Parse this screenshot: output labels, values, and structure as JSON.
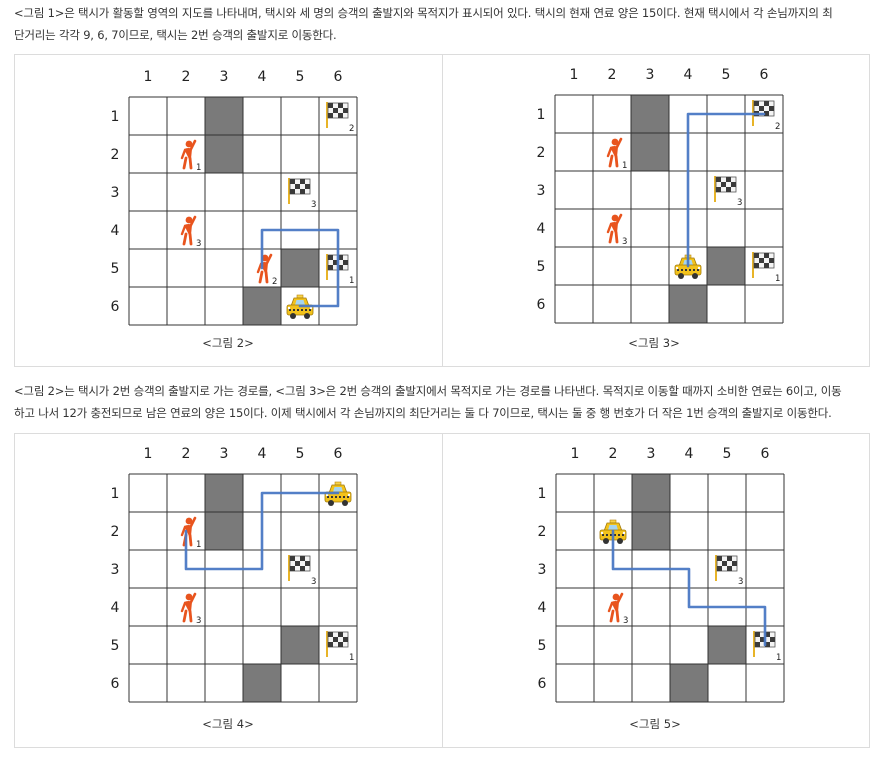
{
  "paragraph1": {
    "line1": "<그림 1>은 택시가 활동할 영역의 지도를 나타내며, 택시와 세 명의 승객의 출발지와 목적지가 표시되어 있다. 택시의 현재 연료 양은 15이다. 현재 택시에서 각 손님까지의 최",
    "line2": "단거리는 각각 9, 6, 7이므로, 택시는 2번 승객의 출발지로 이동한다."
  },
  "paragraph2": {
    "line1": "<그림 2>는 택시가 2번 승객의 출발지로 가는 경로를, <그림 3>은 2번 승객의 출발지에서 목적지로 가는 경로를 나타낸다. 목적지로 이동할 때까지 소비한 연료는 6이고, 이동",
    "line2": "하고 나서 12가 충전되므로 남은 연료의 양은 15이다. 이제 택시에서 각 손님까지의 최단거리는 둘 다 7이므로, 택시는 둘 중 행 번호가 더 작은 1번 승객의 출발지로 이동한다."
  },
  "colors": {
    "wall": "#7a7a7a",
    "route": "#4a78c4",
    "person": "#e8541e",
    "taxi": "#f2c21b",
    "grid": "#333333"
  },
  "icons": [
    "person-icon",
    "taxi-icon",
    "checkered-flag-icon"
  ],
  "grid_labels": {
    "columns": [
      "1",
      "2",
      "3",
      "4",
      "5",
      "6"
    ],
    "rows": [
      "1",
      "2",
      "3",
      "4",
      "5",
      "6"
    ]
  },
  "figures": [
    {
      "caption": "<그림 2>",
      "walls": [
        [
          1,
          3
        ],
        [
          2,
          3
        ],
        [
          5,
          5
        ],
        [
          6,
          4
        ]
      ],
      "people": [
        {
          "row": 2,
          "col": 2,
          "label": "1"
        },
        {
          "row": 4,
          "col": 2,
          "label": "3"
        },
        {
          "row": 5,
          "col": 4,
          "label": "2"
        }
      ],
      "flags": [
        {
          "row": 1,
          "col": 6,
          "label": "2"
        },
        {
          "row": 3,
          "col": 5,
          "label": "3"
        },
        {
          "row": 5,
          "col": 6,
          "label": "1"
        }
      ],
      "taxi": {
        "row": 6,
        "col": 5
      },
      "route": [
        [
          6,
          5
        ],
        [
          6,
          6
        ],
        [
          4,
          6
        ],
        [
          4,
          4
        ],
        [
          5,
          4
        ]
      ]
    },
    {
      "caption": "<그림 3>",
      "walls": [
        [
          1,
          3
        ],
        [
          2,
          3
        ],
        [
          5,
          5
        ],
        [
          6,
          4
        ]
      ],
      "people": [
        {
          "row": 2,
          "col": 2,
          "label": "1"
        },
        {
          "row": 4,
          "col": 2,
          "label": "3"
        }
      ],
      "flags": [
        {
          "row": 1,
          "col": 6,
          "label": "2"
        },
        {
          "row": 3,
          "col": 5,
          "label": "3"
        },
        {
          "row": 5,
          "col": 6,
          "label": "1"
        }
      ],
      "taxi": {
        "row": 5,
        "col": 4
      },
      "route": [
        [
          5,
          4
        ],
        [
          1,
          4
        ],
        [
          1,
          6
        ]
      ]
    },
    {
      "caption": "<그림 4>",
      "walls": [
        [
          1,
          3
        ],
        [
          2,
          3
        ],
        [
          5,
          5
        ],
        [
          6,
          4
        ]
      ],
      "people": [
        {
          "row": 2,
          "col": 2,
          "label": "1"
        },
        {
          "row": 4,
          "col": 2,
          "label": "3"
        }
      ],
      "flags": [
        {
          "row": 3,
          "col": 5,
          "label": "3"
        },
        {
          "row": 5,
          "col": 6,
          "label": "1"
        }
      ],
      "taxi": {
        "row": 1,
        "col": 6
      },
      "route": [
        [
          1,
          6
        ],
        [
          1,
          4
        ],
        [
          3,
          4
        ],
        [
          3,
          2
        ],
        [
          2,
          2
        ]
      ]
    },
    {
      "caption": "<그림 5>",
      "walls": [
        [
          1,
          3
        ],
        [
          2,
          3
        ],
        [
          5,
          5
        ],
        [
          6,
          4
        ]
      ],
      "people": [
        {
          "row": 4,
          "col": 2,
          "label": "3"
        }
      ],
      "flags": [
        {
          "row": 3,
          "col": 5,
          "label": "3"
        },
        {
          "row": 5,
          "col": 6,
          "label": "1"
        }
      ],
      "taxi": {
        "row": 2,
        "col": 2
      },
      "route": [
        [
          2,
          2
        ],
        [
          3,
          2
        ],
        [
          3,
          4
        ],
        [
          4,
          4
        ],
        [
          4,
          6
        ],
        [
          5,
          6
        ]
      ]
    }
  ]
}
